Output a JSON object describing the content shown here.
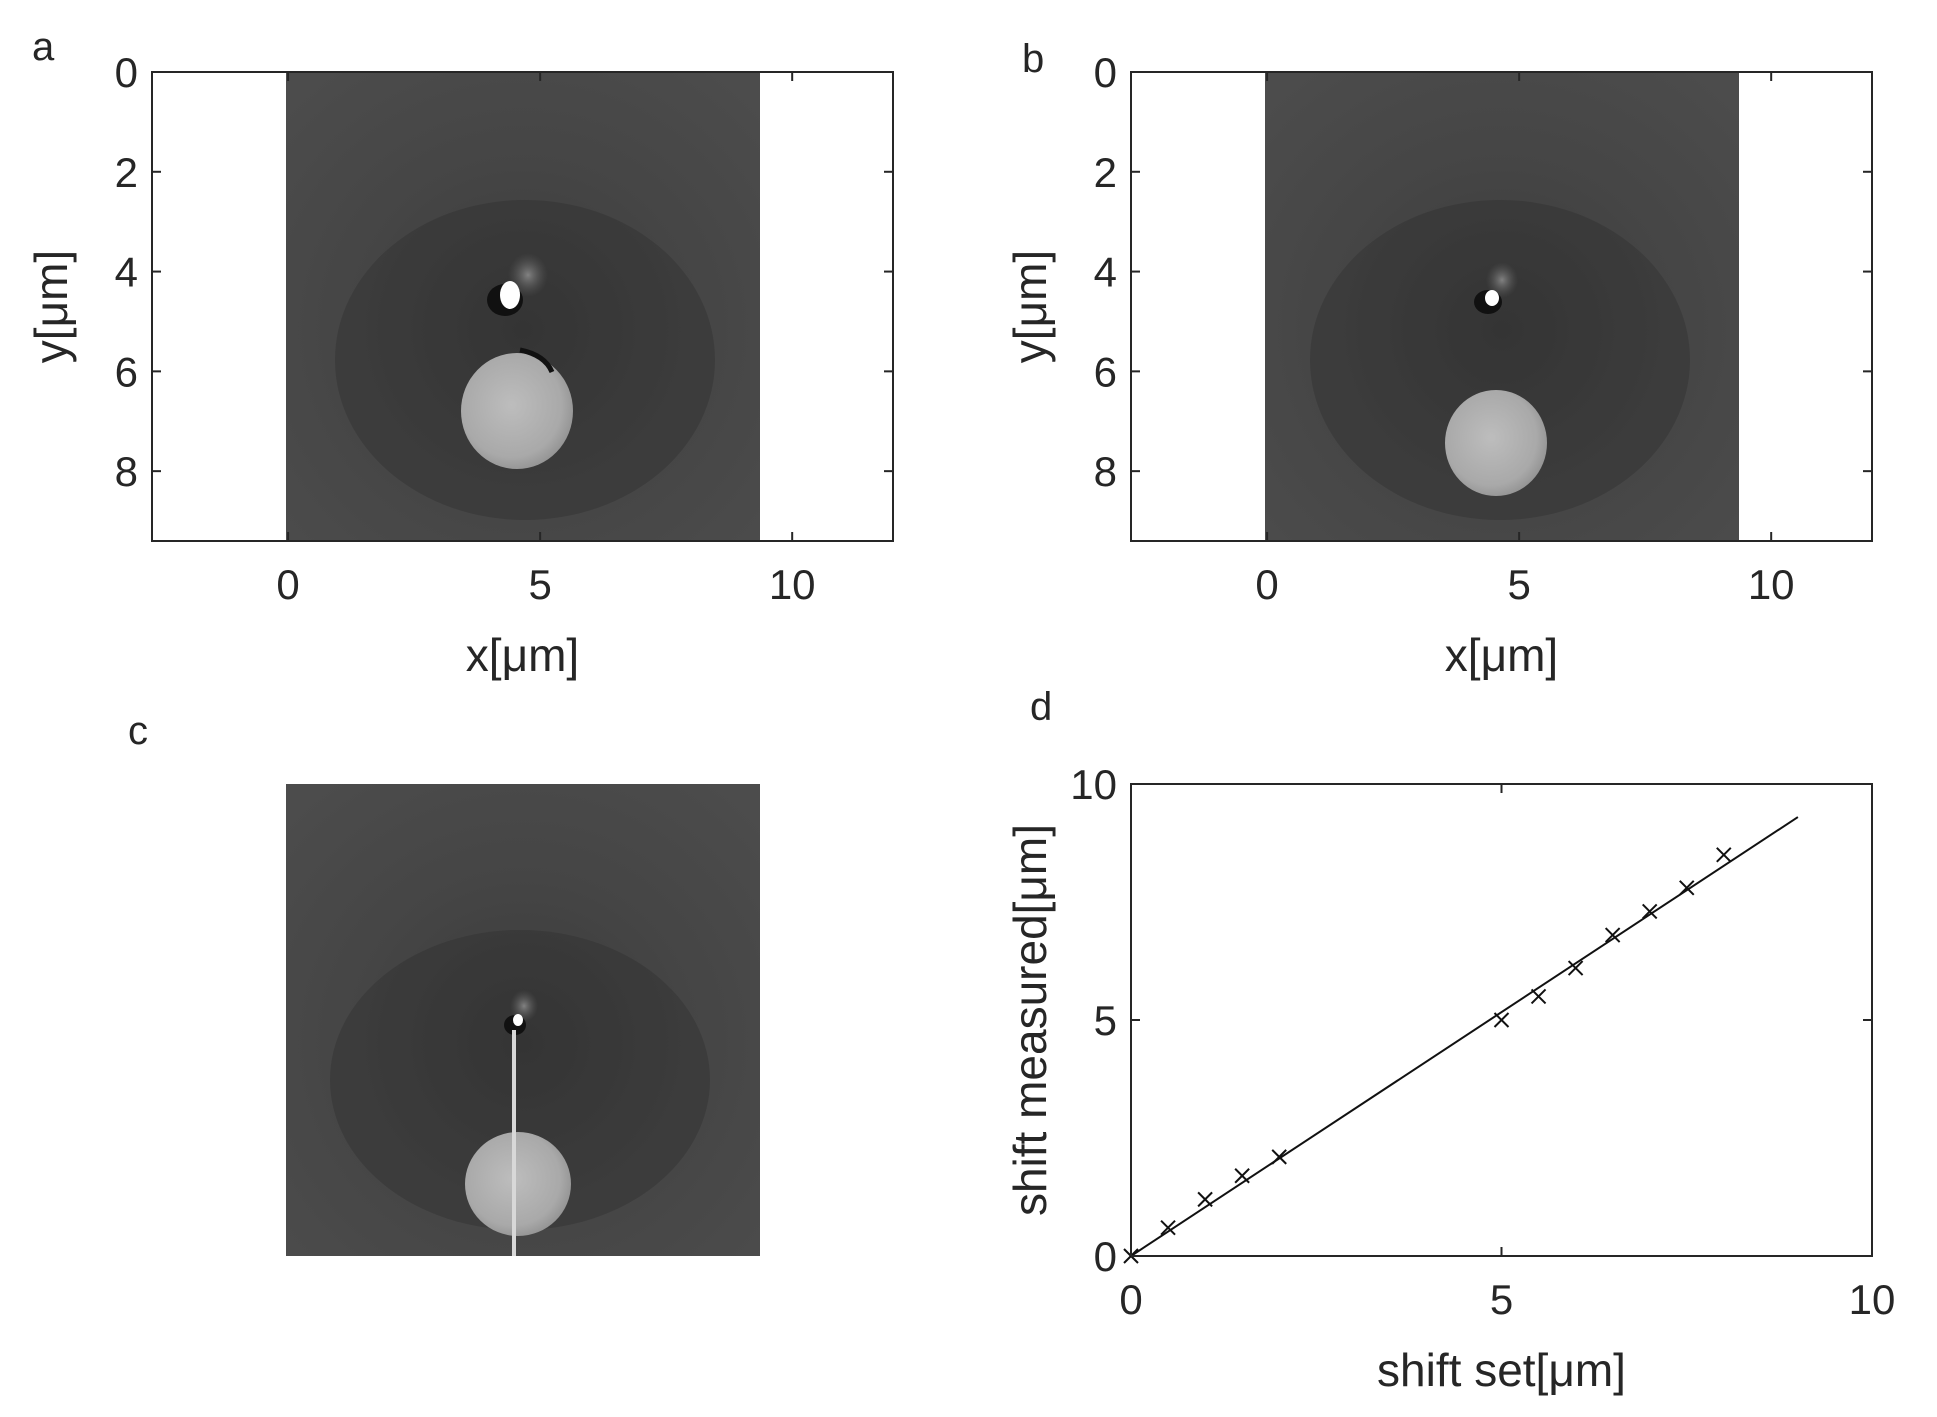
{
  "chart_data": [
    {
      "panel": "a",
      "type": "heatmap",
      "title": "",
      "xlabel": "x[μm]",
      "ylabel": "y[μm]",
      "xlim": [
        -2.7,
        12
      ],
      "ylim": [
        9.4,
        0
      ],
      "image_extent": {
        "x": [
          0,
          9.4
        ],
        "y": [
          0,
          9.4
        ]
      },
      "x_ticks": [
        0,
        5,
        10
      ],
      "y_ticks": [
        0,
        2,
        4,
        6,
        8
      ],
      "colormap": "gray",
      "grid": false
    },
    {
      "panel": "b",
      "type": "heatmap",
      "title": "",
      "xlabel": "x[μm]",
      "ylabel": "y[μm]",
      "xlim": [
        -2.7,
        12
      ],
      "ylim": [
        9.4,
        0
      ],
      "image_extent": {
        "x": [
          0,
          9.4
        ],
        "y": [
          0,
          9.4
        ]
      },
      "x_ticks": [
        0,
        5,
        10
      ],
      "y_ticks": [
        0,
        2,
        4,
        6,
        8
      ],
      "colormap": "gray",
      "grid": false
    },
    {
      "panel": "c",
      "type": "heatmap",
      "title": "",
      "xlabel": "",
      "ylabel": "",
      "colormap": "gray",
      "axes_visible": false
    },
    {
      "panel": "d",
      "type": "scatter",
      "title": "",
      "xlabel": "shift set[μm]",
      "ylabel": "shift measured[μm]",
      "xlim": [
        0,
        10
      ],
      "ylim": [
        0,
        10
      ],
      "x_ticks": [
        0,
        5,
        10
      ],
      "y_ticks": [
        0,
        5,
        10
      ],
      "marker": "x",
      "grid": false,
      "points": {
        "x": [
          0,
          0.5,
          1.0,
          1.5,
          2.0,
          5.0,
          5.5,
          6.0,
          6.5,
          7.0,
          7.5,
          8.0
        ],
        "y": [
          0,
          0.6,
          1.2,
          1.7,
          2.1,
          5.0,
          5.5,
          6.1,
          6.8,
          7.3,
          7.8,
          8.5
        ]
      },
      "fit_line": {
        "x": [
          0,
          9
        ],
        "y": [
          0,
          9.3
        ]
      }
    }
  ]
}
